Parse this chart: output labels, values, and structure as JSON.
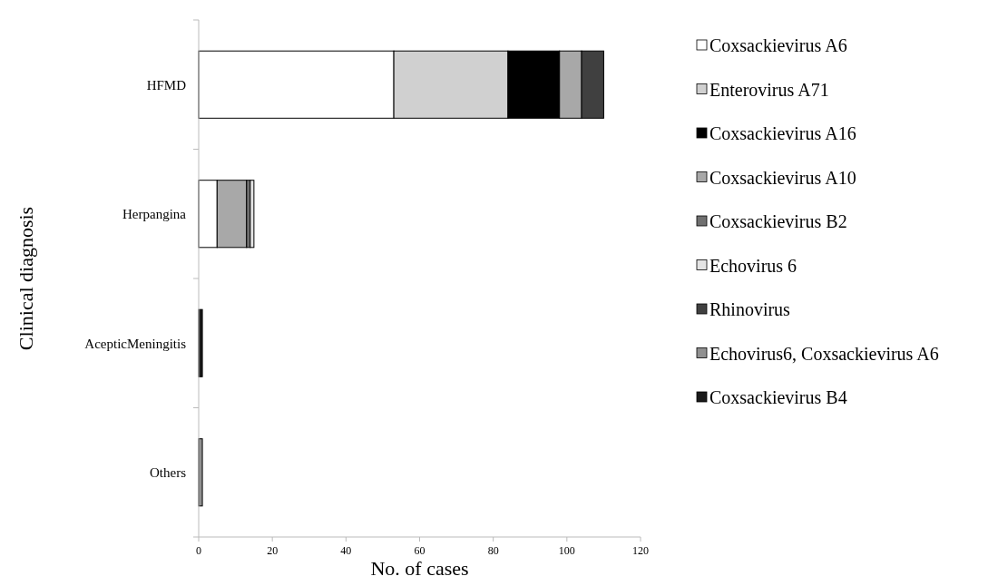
{
  "chart_data": {
    "type": "bar",
    "orientation": "horizontal",
    "stacked": true,
    "xlabel": "No. of cases",
    "ylabel": "Clinical diagnosis",
    "categories": [
      "HFMD",
      "Herpangina",
      "AcepticMeningitis",
      "Others"
    ],
    "xlim": [
      0,
      120
    ],
    "xticks": [
      0,
      20,
      40,
      60,
      80,
      100,
      120
    ],
    "legend": "right",
    "grid": false,
    "series": [
      {
        "name": "Coxsackievirus A6",
        "color": "#ffffff",
        "values": [
          53,
          5,
          0,
          0
        ]
      },
      {
        "name": "Enterovirus A71",
        "color": "#d0d0d0",
        "values": [
          31,
          0,
          0,
          0
        ]
      },
      {
        "name": "Coxsackievirus A16",
        "color": "#000000",
        "values": [
          14,
          0,
          0,
          0
        ]
      },
      {
        "name": "Coxsackievirus A10",
        "color": "#a8a8a8",
        "values": [
          6,
          8,
          0,
          0
        ]
      },
      {
        "name": "Coxsackievirus B2",
        "color": "#707070",
        "values": [
          0,
          1,
          0,
          0
        ]
      },
      {
        "name": "Echovirus 6",
        "color": "#e4e4e4",
        "values": [
          0,
          1,
          0,
          0
        ]
      },
      {
        "name": "Rhinovirus",
        "color": "#404040",
        "values": [
          6,
          0,
          0,
          0
        ]
      },
      {
        "name": "Echovirus6, Coxsackievirus A6",
        "color": "#909090",
        "values": [
          0,
          0,
          0,
          1
        ]
      },
      {
        "name": "Coxsackievirus B4",
        "color": "#1a1a1a",
        "values": [
          0,
          0,
          1,
          0
        ]
      }
    ]
  }
}
